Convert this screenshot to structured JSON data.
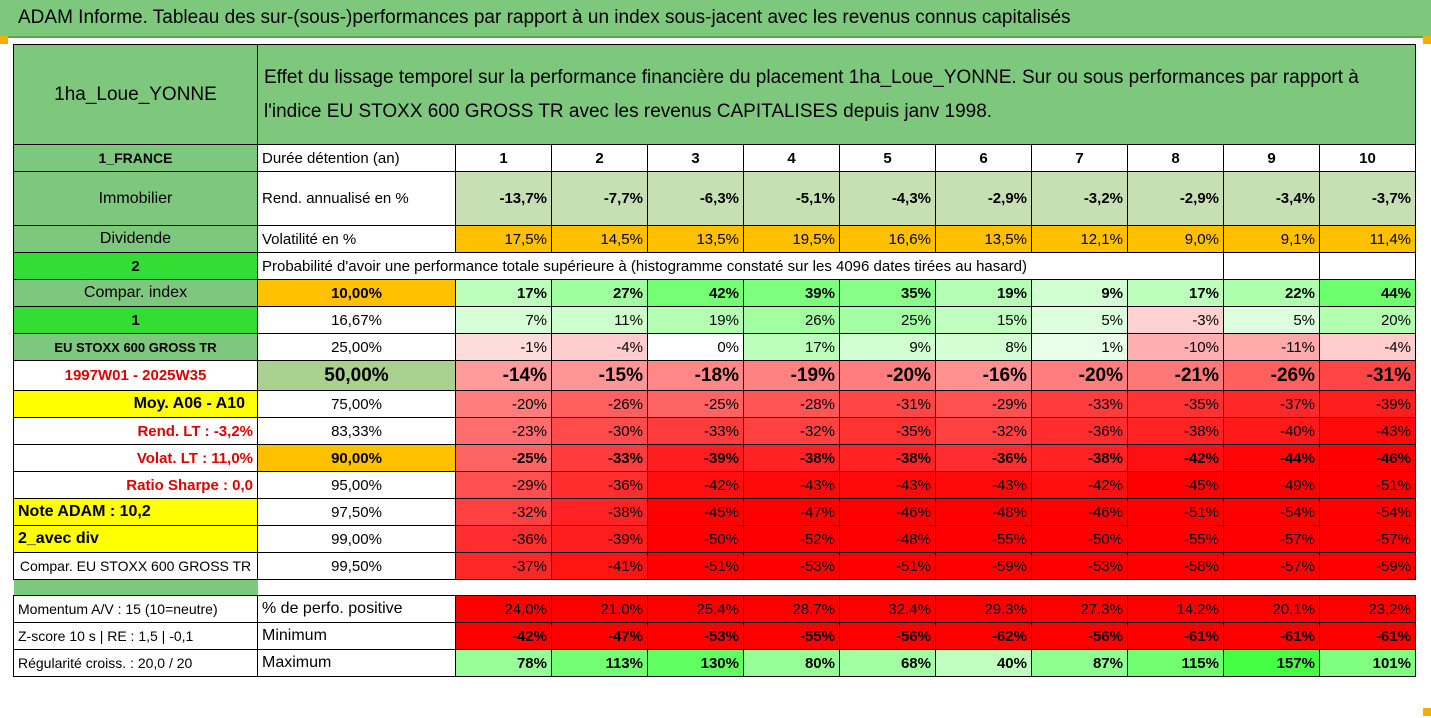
{
  "title": "ADAM Informe. Tableau des sur-(sous-)performances par rapport à un index sous-jacent avec les revenus connus capitalisés",
  "header": {
    "name": "1ha_Loue_YONNE",
    "description": "Effet du lissage temporel sur la performance financière du placement 1ha_Loue_YONNE. Sur ou sous performances par rapport à l'indice EU STOXX 600 GROSS TR avec les revenus CAPITALISES depuis janv 1998."
  },
  "colors": {
    "green": "#7dc87d",
    "light_green": "#a9d8a0",
    "bright_green": "#33dd33",
    "yellow": "#ffff00",
    "orange": "#ffc000",
    "red_text": "#e00000"
  },
  "side_labels": {
    "country": "1_FRANCE",
    "asset_type": "Immobilier",
    "dividend": "Dividende",
    "two": "2",
    "compar_index": "Compar. index",
    "one": "1",
    "index_name": "EU STOXX 600 GROSS TR",
    "period": "1997W01 - 2025W35",
    "moy": "Moy. A06 - A10",
    "rend_lt": "Rend. LT :   -3,2%",
    "volat_lt": "Volat. LT :   11,0%",
    "sharpe": "Ratio Sharpe :    0,0",
    "note": "Note ADAM : 10,2",
    "avec_div": "2_avec div",
    "compar_long": "Compar. EU STOXX 600 GROSS TR",
    "momentum": "Momentum A/V : 15 (10=neutre)",
    "zscore": "Z-score 10 s  | RE : 1,5  | -0,1",
    "regularite": "Régularité croiss. : 20,0 / 20"
  },
  "row_labels": {
    "duration": "Durée détention (an)",
    "rend": "Rend. annualisé en %",
    "vol": "Volatilité en %",
    "proba": "Probabilité d'avoir une performance totale supérieure à (histogramme constaté sur les 4096 dates tirées au hasard)",
    "positive": "% de perfo. positive",
    "minimum": "Minimum",
    "maximum": "Maximum"
  },
  "years": [
    "1",
    "2",
    "3",
    "4",
    "5",
    "6",
    "7",
    "8",
    "9",
    "10"
  ],
  "rend": [
    "-13,7%",
    "-7,7%",
    "-6,3%",
    "-5,1%",
    "-4,3%",
    "-2,9%",
    "-3,2%",
    "-2,9%",
    "-3,4%",
    "-3,7%"
  ],
  "vol": [
    "17,5%",
    "14,5%",
    "13,5%",
    "19,5%",
    "16,6%",
    "13,5%",
    "12,1%",
    "9,0%",
    "9,1%",
    "11,4%"
  ],
  "percentiles": [
    {
      "p": "10,00%",
      "v": [
        "17%",
        "27%",
        "42%",
        "39%",
        "35%",
        "19%",
        "9%",
        "17%",
        "22%",
        "44%"
      ]
    },
    {
      "p": "16,67%",
      "v": [
        "7%",
        "11%",
        "19%",
        "26%",
        "25%",
        "15%",
        "5%",
        "-3%",
        "5%",
        "20%"
      ]
    },
    {
      "p": "25,00%",
      "v": [
        "-1%",
        "-4%",
        "0%",
        "17%",
        "9%",
        "8%",
        "1%",
        "-10%",
        "-11%",
        "-4%"
      ]
    },
    {
      "p": "50,00%",
      "v": [
        "-14%",
        "-15%",
        "-18%",
        "-19%",
        "-20%",
        "-16%",
        "-20%",
        "-21%",
        "-26%",
        "-31%"
      ]
    },
    {
      "p": "75,00%",
      "v": [
        "-20%",
        "-26%",
        "-25%",
        "-28%",
        "-31%",
        "-29%",
        "-33%",
        "-35%",
        "-37%",
        "-39%"
      ]
    },
    {
      "p": "83,33%",
      "v": [
        "-23%",
        "-30%",
        "-33%",
        "-32%",
        "-35%",
        "-32%",
        "-36%",
        "-38%",
        "-40%",
        "-43%"
      ]
    },
    {
      "p": "90,00%",
      "v": [
        "-25%",
        "-33%",
        "-39%",
        "-38%",
        "-38%",
        "-36%",
        "-38%",
        "-42%",
        "-44%",
        "-46%"
      ]
    },
    {
      "p": "95,00%",
      "v": [
        "-29%",
        "-36%",
        "-42%",
        "-43%",
        "-43%",
        "-43%",
        "-42%",
        "-45%",
        "-49%",
        "-51%"
      ]
    },
    {
      "p": "97,50%",
      "v": [
        "-32%",
        "-38%",
        "-45%",
        "-47%",
        "-46%",
        "-48%",
        "-46%",
        "-51%",
        "-54%",
        "-54%"
      ]
    },
    {
      "p": "99,00%",
      "v": [
        "-36%",
        "-39%",
        "-50%",
        "-52%",
        "-48%",
        "-55%",
        "-50%",
        "-55%",
        "-57%",
        "-57%"
      ]
    },
    {
      "p": "99,50%",
      "v": [
        "-37%",
        "-41%",
        "-51%",
        "-53%",
        "-51%",
        "-59%",
        "-53%",
        "-58%",
        "-57%",
        "-59%"
      ]
    }
  ],
  "positive": [
    "24,0%",
    "21,0%",
    "25,4%",
    "28,7%",
    "32,4%",
    "29,3%",
    "27,3%",
    "14,2%",
    "20,1%",
    "23,2%"
  ],
  "minimum": [
    "-42%",
    "-47%",
    "-53%",
    "-55%",
    "-56%",
    "-62%",
    "-56%",
    "-61%",
    "-61%",
    "-61%"
  ],
  "maximum": [
    "78%",
    "113%",
    "130%",
    "80%",
    "68%",
    "40%",
    "87%",
    "115%",
    "157%",
    "101%"
  ]
}
